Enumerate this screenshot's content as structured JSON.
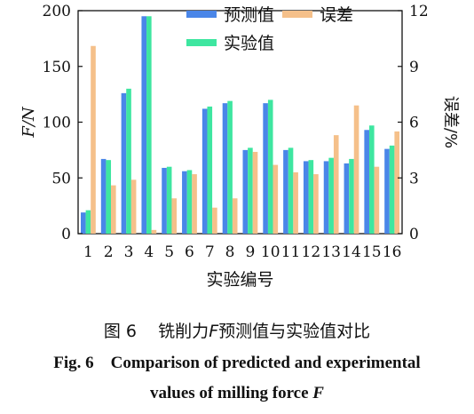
{
  "chart_data": {
    "type": "bar",
    "categories": [
      "1",
      "2",
      "3",
      "4",
      "5",
      "6",
      "7",
      "8",
      "9",
      "10",
      "11",
      "12",
      "13",
      "14",
      "15",
      "16"
    ],
    "series": [
      {
        "name": "预测值",
        "axis": "left",
        "color": "#4a86e8",
        "values": [
          19,
          67,
          126,
          195,
          59,
          56,
          112,
          117,
          75,
          117,
          75,
          65,
          65,
          63,
          93,
          76
        ]
      },
      {
        "name": "实验值",
        "axis": "left",
        "color": "#3ee6a0",
        "values": [
          21,
          66,
          130,
          195,
          60,
          57,
          114,
          119,
          77,
          120,
          77,
          66,
          68,
          67,
          97,
          79
        ]
      },
      {
        "name": "误差",
        "axis": "right",
        "color": "#f5c08a",
        "values": [
          10.1,
          2.6,
          2.9,
          0.2,
          1.9,
          3.2,
          1.4,
          1.9,
          4.4,
          3.7,
          3.3,
          3.2,
          5.3,
          6.9,
          3.6,
          5.5
        ]
      }
    ],
    "xlabel": "实验编号",
    "ylabel_left": "F/N",
    "ylabel_right": "误差/%",
    "ylim_left": [
      0,
      200
    ],
    "yticks_left": [
      "0",
      "50",
      "100",
      "150",
      "200"
    ],
    "ylim_right": [
      0,
      12
    ],
    "yticks_right": [
      "0",
      "3",
      "6",
      "9",
      "12"
    ],
    "legend_position": "top-center",
    "grid": false
  },
  "caption": {
    "cn_prefix": "图 6",
    "cn_text": "铣削力",
    "cn_var": "F",
    "cn_rest": "预测值与实验值对比",
    "en_prefix": "Fig. 6",
    "en_line1": "Comparison of predicted and experimental",
    "en_line2": "values of milling force",
    "en_var": "F"
  }
}
